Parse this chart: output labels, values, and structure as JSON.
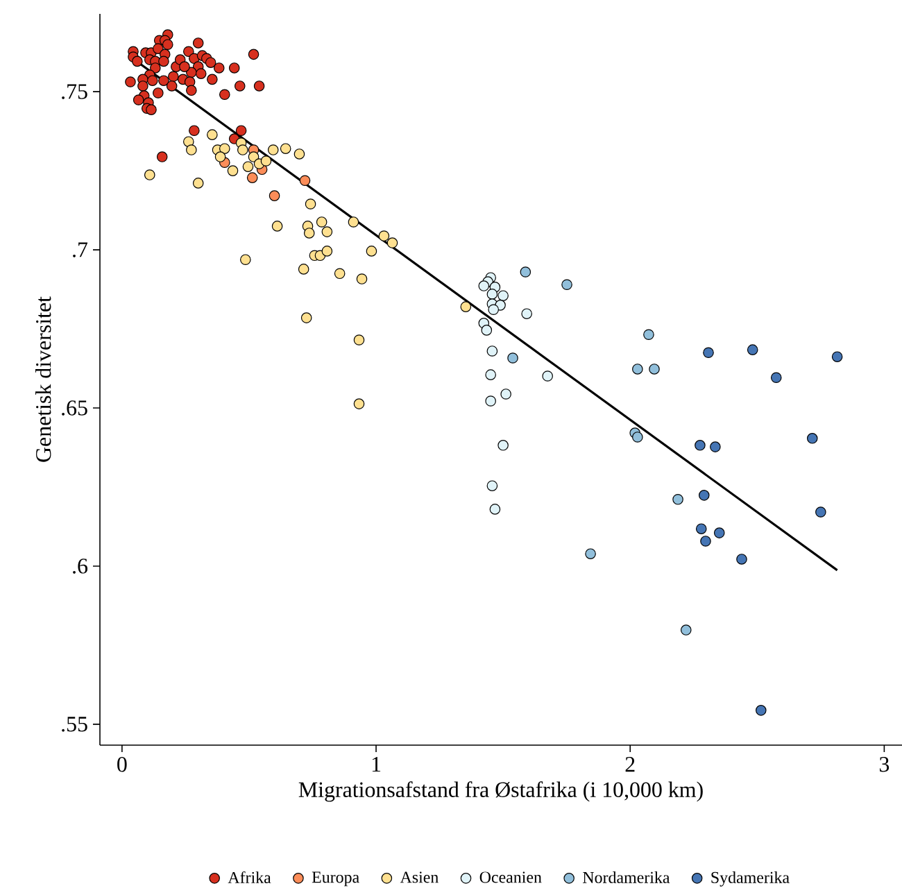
{
  "chart_data": {
    "type": "scatter",
    "xlabel": "Migrationsafstand fra Østafrika (i 10,000 km)",
    "ylabel": "Genetisk diversitet",
    "xlim": [
      -0.087,
      3.07
    ],
    "ylim": [
      0.5434,
      0.7746
    ],
    "xticks": [
      0,
      1,
      2,
      3
    ],
    "yticks": [
      {
        "value": 0.55,
        "label": ".55"
      },
      {
        "value": 0.6,
        "label": ".6"
      },
      {
        "value": 0.65,
        "label": ".65"
      },
      {
        "value": 0.7,
        "label": ".7"
      },
      {
        "value": 0.75,
        "label": ".75"
      }
    ],
    "grid": false,
    "legend": "bottom",
    "series": [
      {
        "name": "Afrika",
        "marker": "circle",
        "color": "#d7301f",
        "x": [
          0.044,
          0.044,
          0.06,
          0.093,
          0.115,
          0.109,
          0.131,
          0.147,
          0.18,
          0.169,
          0.18,
          0.142,
          0.169,
          0.164,
          0.213,
          0.131,
          0.109,
          0.082,
          0.033,
          0.082,
          0.12,
          0.142,
          0.087,
          0.065,
          0.104,
          0.098,
          0.115,
          0.164,
          0.202,
          0.229,
          0.262,
          0.3,
          0.284,
          0.316,
          0.333,
          0.349,
          0.3,
          0.273,
          0.246,
          0.24,
          0.267,
          0.311,
          0.355,
          0.382,
          0.442,
          0.464,
          0.404,
          0.518,
          0.54,
          0.273,
          0.196,
          0.284,
          0.469,
          0.442,
          0.158
        ],
        "values": [
          0.7627,
          0.761,
          0.7596,
          0.7623,
          0.7623,
          0.7601,
          0.7596,
          0.7662,
          0.768,
          0.7662,
          0.7649,
          0.7636,
          0.7618,
          0.7596,
          0.7579,
          0.7575,
          0.7553,
          0.7539,
          0.7531,
          0.7518,
          0.7535,
          0.7496,
          0.7487,
          0.7474,
          0.7465,
          0.7447,
          0.7443,
          0.7535,
          0.7548,
          0.7601,
          0.7627,
          0.7654,
          0.7605,
          0.7614,
          0.7605,
          0.7592,
          0.7579,
          0.7561,
          0.7579,
          0.7539,
          0.7531,
          0.7557,
          0.7539,
          0.7575,
          0.7575,
          0.7518,
          0.7491,
          0.7618,
          0.7518,
          0.7504,
          0.7518,
          0.7377,
          0.7377,
          0.7351,
          0.7294
        ]
      },
      {
        "name": "Europa",
        "marker": "circle",
        "color": "#fc8d59",
        "x": [
          0.404,
          0.518,
          0.513,
          0.551,
          0.6,
          0.72
        ],
        "values": [
          0.7276,
          0.7316,
          0.7228,
          0.7254,
          0.7171,
          0.7219
        ]
      },
      {
        "name": "Asien",
        "marker": "circle",
        "color": "#fee090",
        "x": [
          0.355,
          0.262,
          0.273,
          0.376,
          0.404,
          0.469,
          0.387,
          0.475,
          0.518,
          0.54,
          0.496,
          0.567,
          0.436,
          0.595,
          0.644,
          0.698,
          0.109,
          0.3,
          0.742,
          0.611,
          0.731,
          0.737,
          0.786,
          0.807,
          0.911,
          1.031,
          1.064,
          0.486,
          0.758,
          0.78,
          0.807,
          0.982,
          0.715,
          0.857,
          0.944,
          0.726,
          0.933,
          0.933,
          1.353
        ],
        "values": [
          0.7364,
          0.7342,
          0.7316,
          0.7316,
          0.732,
          0.7338,
          0.7294,
          0.7316,
          0.7294,
          0.7272,
          0.7263,
          0.7281,
          0.725,
          0.7316,
          0.732,
          0.7303,
          0.7237,
          0.7211,
          0.7145,
          0.7075,
          0.7075,
          0.7053,
          0.7088,
          0.7057,
          0.7088,
          0.7044,
          0.7022,
          0.6969,
          0.6982,
          0.6982,
          0.6996,
          0.6996,
          0.6939,
          0.6925,
          0.6908,
          0.6785,
          0.6715,
          0.6513,
          0.682
        ]
      },
      {
        "name": "Oceanien",
        "marker": "circle",
        "color": "#e0f3f8",
        "x": [
          1.451,
          1.44,
          1.424,
          1.468,
          1.457,
          1.5,
          1.457,
          1.489,
          1.462,
          1.593,
          1.424,
          1.435,
          1.457,
          1.675,
          1.451,
          1.511,
          1.451,
          1.5,
          1.457,
          1.468
        ],
        "values": [
          0.6912,
          0.6899,
          0.6886,
          0.6882,
          0.686,
          0.6855,
          0.6829,
          0.6825,
          0.6811,
          0.6798,
          0.6768,
          0.6746,
          0.668,
          0.6601,
          0.6605,
          0.6544,
          0.6522,
          0.6382,
          0.6254,
          0.618
        ]
      },
      {
        "name": "Nordamerika",
        "marker": "circle",
        "color": "#91bfdb",
        "x": [
          1.588,
          1.751,
          1.538,
          2.073,
          2.029,
          2.095,
          2.019,
          2.029,
          2.188,
          1.844,
          2.22
        ],
        "values": [
          0.693,
          0.689,
          0.6658,
          0.6732,
          0.6623,
          0.6623,
          0.6421,
          0.6408,
          0.6211,
          0.6039,
          0.5798
        ]
      },
      {
        "name": "Sydamerika",
        "marker": "circle",
        "color": "#4575b4",
        "x": [
          2.308,
          2.482,
          2.815,
          2.575,
          2.275,
          2.335,
          2.717,
          2.291,
          2.75,
          2.28,
          2.297,
          2.351,
          2.439,
          2.515
        ],
        "values": [
          0.6675,
          0.6684,
          0.6662,
          0.6596,
          0.6382,
          0.6377,
          0.6404,
          0.6224,
          0.6171,
          0.6118,
          0.6079,
          0.6105,
          0.6022,
          0.5544
        ]
      },
      {
        "type": "line",
        "marker": "none",
        "color": "#000000",
        "x": [
          0.027,
          2.815
        ],
        "values": [
          0.7614,
          0.5987
        ]
      }
    ]
  }
}
